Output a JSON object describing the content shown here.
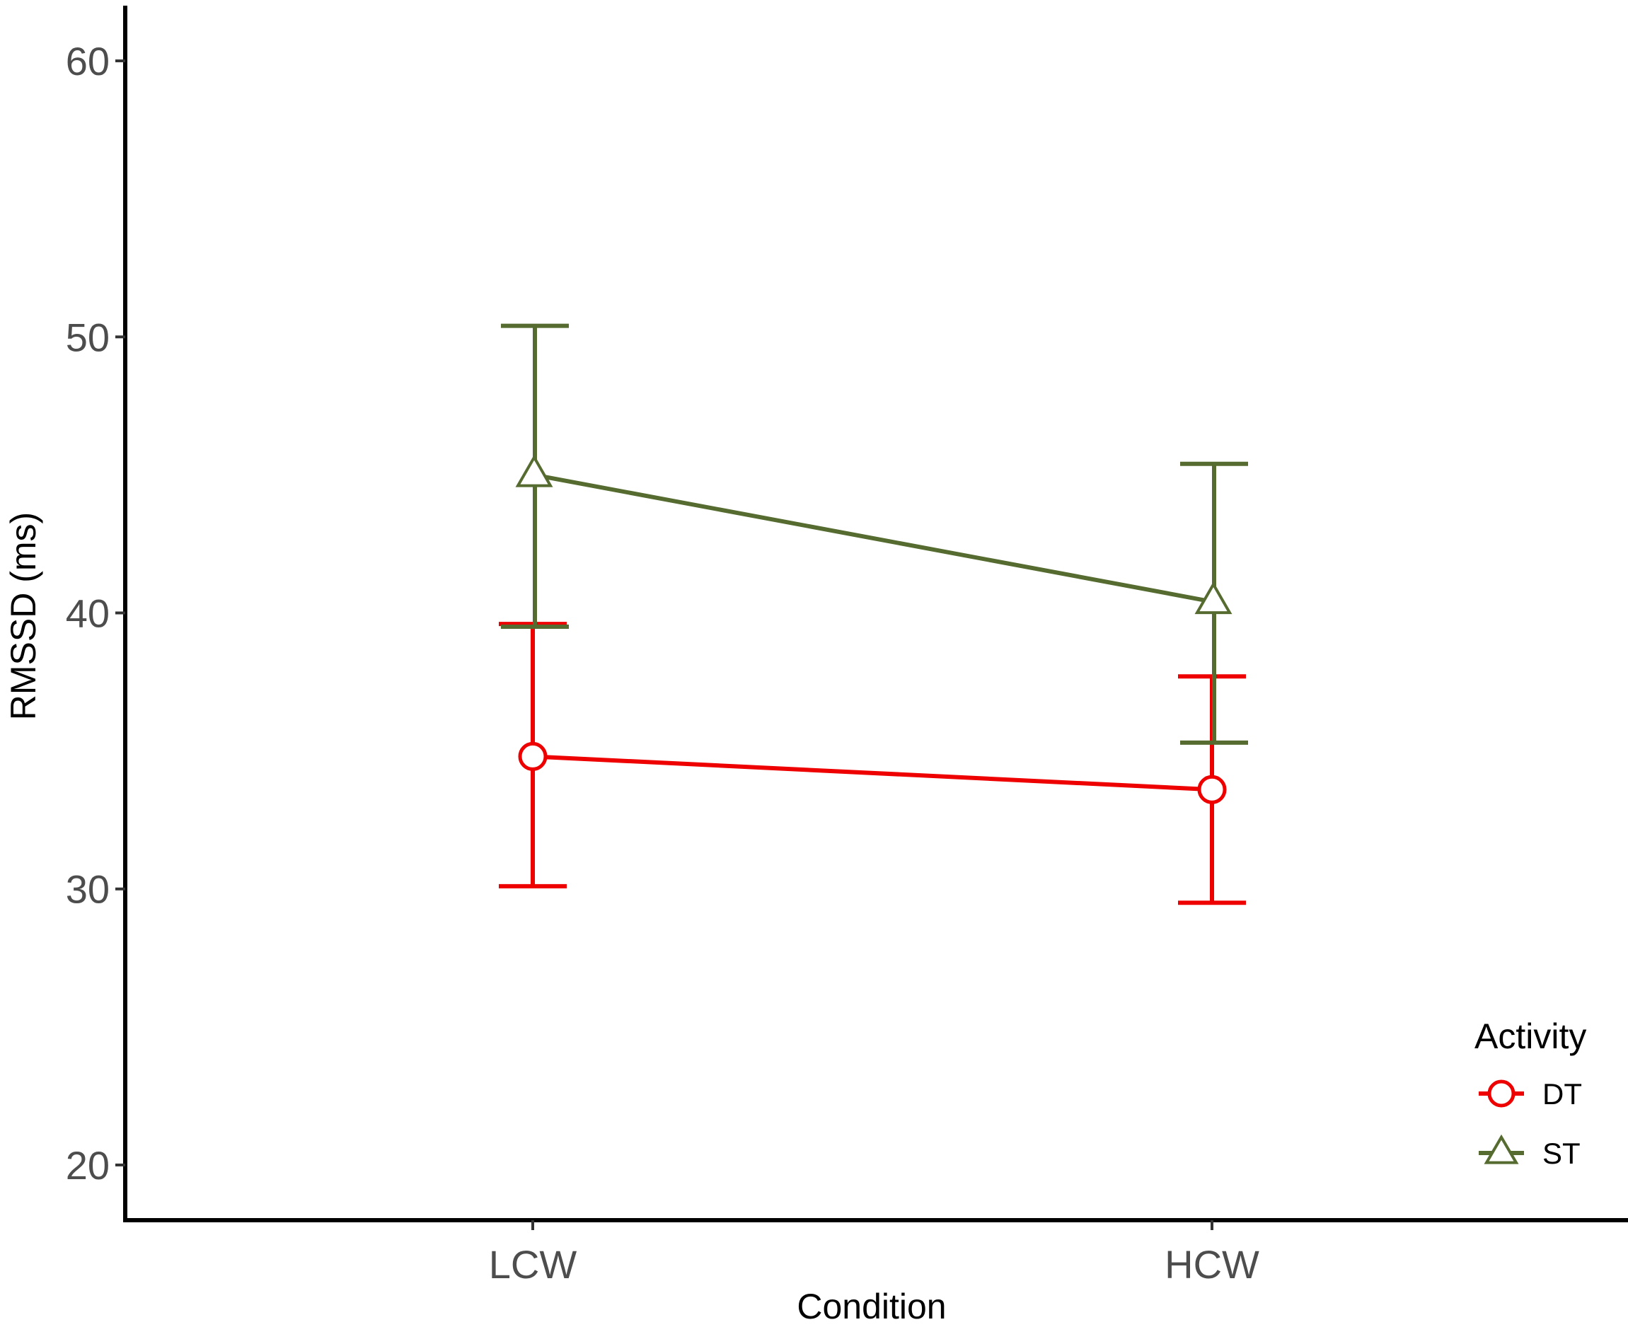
{
  "chart_data": {
    "type": "line",
    "title": "",
    "xlabel": "Condition",
    "ylabel": "RMSSD (ms)",
    "categories": [
      "LCW",
      "HCW"
    ],
    "ylim": [
      18,
      62
    ],
    "yticks": [
      20,
      30,
      40,
      50,
      60
    ],
    "grid": false,
    "legend": {
      "title": "Activity",
      "position": "bottom-right"
    },
    "series": [
      {
        "name": "DT",
        "color": "#ee0000",
        "marker": "circle",
        "values": [
          34.8,
          33.6
        ],
        "error_low": [
          30.1,
          29.5
        ],
        "error_high": [
          39.6,
          37.7
        ]
      },
      {
        "name": "ST",
        "color": "#556b2f",
        "marker": "triangle",
        "values": [
          45.0,
          40.4
        ],
        "error_low": [
          39.5,
          35.3
        ],
        "error_high": [
          50.4,
          45.4
        ]
      }
    ]
  }
}
